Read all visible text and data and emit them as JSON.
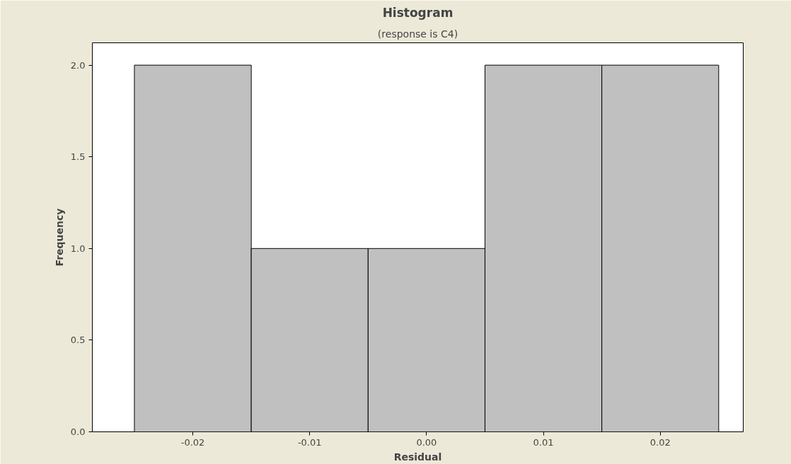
{
  "chart_data": {
    "type": "histogram",
    "title": "Histogram",
    "subtitle": "(response is C4)",
    "xlabel": "Residual",
    "ylabel": "Frequency",
    "bins": [
      -0.025,
      -0.015,
      -0.005,
      0.005,
      0.015,
      0.025
    ],
    "values": [
      2,
      1,
      1,
      2,
      2
    ],
    "color": "#c0c0c0",
    "xlim": [
      -0.0286,
      0.0271
    ],
    "ylim": [
      0,
      2.122
    ],
    "xticks": [
      {
        "value": -0.02,
        "label": "-0.02"
      },
      {
        "value": -0.01,
        "label": "-0.01"
      },
      {
        "value": 0,
        "label": "0.00"
      },
      {
        "value": 0.01,
        "label": "0.01"
      },
      {
        "value": 0.02,
        "label": "0.02"
      }
    ],
    "yticks": [
      {
        "value": 0,
        "label": "0.0"
      },
      {
        "value": 0.5,
        "label": "0.5"
      },
      {
        "value": 1,
        "label": "1.0"
      },
      {
        "value": 1.5,
        "label": "1.5"
      },
      {
        "value": 2,
        "label": "2.0"
      }
    ],
    "grid": false
  }
}
